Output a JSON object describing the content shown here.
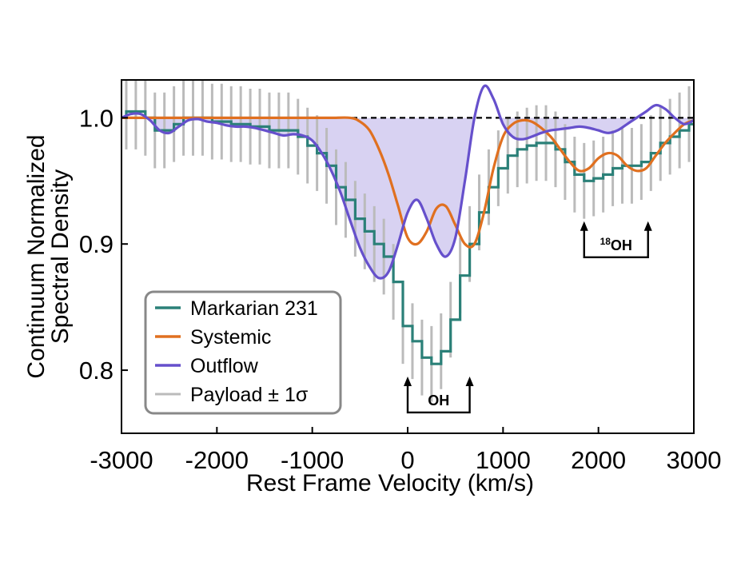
{
  "chart_data": {
    "type": "line",
    "title": "",
    "xlabel": "Rest Frame Velocity (km/s)",
    "ylabel_lines": [
      "Continuum Normalized",
      "Spectral Density"
    ],
    "xlim": [
      -3000,
      3000
    ],
    "ylim": [
      0.75,
      1.03
    ],
    "xticks": [
      -3000,
      -2000,
      -1000,
      0,
      1000,
      2000,
      3000
    ],
    "xtick_labels": [
      "-3000",
      "-2000",
      "-1000",
      "0",
      "1000",
      "2000",
      "3000"
    ],
    "yticks": [
      0.8,
      0.9,
      1.0
    ],
    "ytick_labels": [
      "0.8",
      "0.9",
      "1.0"
    ],
    "continuum_level": 1.0,
    "colors": {
      "markarian": "#2b8078",
      "systemic": "#e07020",
      "outflow": "#6650cc",
      "outflow_fill": "#d8d2f2",
      "payload": "#bbbbbb"
    },
    "legend": {
      "placement": "bottom-left",
      "entries": [
        {
          "label": "Markarian 231",
          "series": "markarian"
        },
        {
          "label": "Systemic",
          "series": "systemic"
        },
        {
          "label": "Outflow",
          "series": "outflow"
        },
        {
          "label": "Payload ± 1σ",
          "series": "payload"
        }
      ]
    },
    "annotations": [
      {
        "label": "OH",
        "sup": "",
        "x_left": 0,
        "x_right": 650,
        "arrow_y": 0.795
      },
      {
        "label": "OH",
        "sup": "18",
        "x_left": 1850,
        "x_right": 2520,
        "arrow_y": 0.918
      }
    ],
    "series": [
      {
        "name": "Markarian 231",
        "key": "markarian",
        "style": "step",
        "x": [
          -3000,
          -2900,
          -2800,
          -2700,
          -2600,
          -2500,
          -2400,
          -2300,
          -2200,
          -2100,
          -2000,
          -1900,
          -1800,
          -1700,
          -1600,
          -1500,
          -1400,
          -1300,
          -1200,
          -1100,
          -1000,
          -900,
          -800,
          -700,
          -600,
          -500,
          -400,
          -300,
          -200,
          -100,
          0,
          100,
          200,
          300,
          400,
          500,
          600,
          700,
          800,
          900,
          1000,
          1100,
          1200,
          1300,
          1400,
          1500,
          1600,
          1700,
          1800,
          1900,
          2000,
          2100,
          2200,
          2300,
          2400,
          2500,
          2600,
          2700,
          2800,
          2900,
          3000
        ],
        "y": [
          1.0,
          1.005,
          1.005,
          1.0,
          0.99,
          0.99,
          0.995,
          1.0,
          1.0,
          1.0,
          0.997,
          0.997,
          0.995,
          0.995,
          0.993,
          0.993,
          0.99,
          0.99,
          0.99,
          0.985,
          0.978,
          0.972,
          0.962,
          0.945,
          0.935,
          0.92,
          0.91,
          0.9,
          0.89,
          0.87,
          0.835,
          0.823,
          0.81,
          0.805,
          0.815,
          0.84,
          0.875,
          0.9,
          0.925,
          0.945,
          0.96,
          0.97,
          0.975,
          0.978,
          0.98,
          0.98,
          0.975,
          0.965,
          0.955,
          0.95,
          0.952,
          0.955,
          0.96,
          0.962,
          0.962,
          0.965,
          0.972,
          0.98,
          0.985,
          0.99,
          0.995
        ]
      },
      {
        "name": "Systemic",
        "key": "systemic",
        "style": "smooth",
        "x": [
          -3000,
          -2800,
          -2600,
          -2400,
          -2200,
          -2000,
          -1800,
          -1600,
          -1400,
          -1200,
          -1000,
          -800,
          -600,
          -500,
          -400,
          -300,
          -200,
          -100,
          0,
          100,
          200,
          300,
          400,
          500,
          600,
          700,
          800,
          900,
          1000,
          1100,
          1200,
          1300,
          1400,
          1500,
          1600,
          1700,
          1800,
          1900,
          2000,
          2100,
          2200,
          2300,
          2400,
          2500,
          2600,
          2700,
          2800,
          2900,
          3000
        ],
        "y": [
          1.0,
          1.0,
          1.0,
          1.0,
          1.0,
          1.0,
          1.0,
          1.0,
          1.0,
          1.0,
          1.0,
          1.0,
          1.0,
          0.997,
          0.99,
          0.975,
          0.955,
          0.93,
          0.905,
          0.9,
          0.91,
          0.928,
          0.93,
          0.915,
          0.9,
          0.9,
          0.925,
          0.96,
          0.985,
          0.995,
          0.998,
          0.997,
          0.992,
          0.985,
          0.975,
          0.965,
          0.958,
          0.96,
          0.968,
          0.972,
          0.97,
          0.962,
          0.958,
          0.96,
          0.97,
          0.98,
          0.988,
          0.995,
          0.998
        ]
      },
      {
        "name": "Outflow",
        "key": "outflow",
        "style": "smooth",
        "x": [
          -3000,
          -2900,
          -2800,
          -2700,
          -2600,
          -2500,
          -2400,
          -2300,
          -2200,
          -2100,
          -2000,
          -1900,
          -1800,
          -1700,
          -1600,
          -1500,
          -1400,
          -1300,
          -1200,
          -1100,
          -1000,
          -900,
          -800,
          -700,
          -600,
          -500,
          -400,
          -300,
          -200,
          -100,
          0,
          100,
          200,
          300,
          400,
          500,
          600,
          700,
          800,
          900,
          1000,
          1100,
          1200,
          1300,
          1400,
          1500,
          1600,
          1700,
          1800,
          1900,
          2000,
          2100,
          2200,
          2300,
          2400,
          2500,
          2600,
          2700,
          2800,
          2900,
          3000
        ],
        "y": [
          1.0,
          1.003,
          1.003,
          0.998,
          0.99,
          0.988,
          0.993,
          0.998,
          0.999,
          0.997,
          0.996,
          0.994,
          0.993,
          0.993,
          0.992,
          0.99,
          0.988,
          0.986,
          0.987,
          0.986,
          0.982,
          0.972,
          0.958,
          0.94,
          0.918,
          0.897,
          0.882,
          0.873,
          0.878,
          0.9,
          0.925,
          0.935,
          0.92,
          0.9,
          0.89,
          0.905,
          0.95,
          1.0,
          1.025,
          1.015,
          0.995,
          0.985,
          0.983,
          0.985,
          0.988,
          0.99,
          0.991,
          0.992,
          0.993,
          0.992,
          0.99,
          0.988,
          0.99,
          0.995,
          1.0,
          1.005,
          1.01,
          1.007,
          1.0,
          0.995,
          0.998
        ]
      },
      {
        "name": "Payload ± 1σ",
        "key": "payload",
        "style": "errorbars",
        "x": [
          -2950,
          -2850,
          -2750,
          -2650,
          -2550,
          -2450,
          -2350,
          -2250,
          -2150,
          -2050,
          -1950,
          -1850,
          -1750,
          -1650,
          -1550,
          -1450,
          -1350,
          -1250,
          -1150,
          -1050,
          -950,
          -850,
          -750,
          -650,
          -550,
          -450,
          -350,
          -250,
          -150,
          -50,
          50,
          150,
          250,
          350,
          450,
          550,
          650,
          750,
          850,
          950,
          1050,
          1150,
          1250,
          1350,
          1450,
          1550,
          1650,
          1750,
          1850,
          1950,
          2050,
          2150,
          2250,
          2350,
          2450,
          2550,
          2650,
          2750,
          2850,
          2950
        ],
        "y": [
          1.005,
          1.005,
          1.0,
          0.99,
          0.99,
          0.995,
          1.0,
          1.0,
          1.0,
          0.997,
          0.997,
          0.995,
          0.995,
          0.993,
          0.993,
          0.99,
          0.99,
          0.99,
          0.985,
          0.978,
          0.972,
          0.962,
          0.945,
          0.935,
          0.92,
          0.91,
          0.9,
          0.89,
          0.87,
          0.835,
          0.823,
          0.81,
          0.805,
          0.815,
          0.84,
          0.875,
          0.9,
          0.925,
          0.945,
          0.96,
          0.97,
          0.975,
          0.978,
          0.98,
          0.98,
          0.975,
          0.965,
          0.955,
          0.95,
          0.952,
          0.955,
          0.96,
          0.962,
          0.962,
          0.965,
          0.972,
          0.98,
          0.985,
          0.99,
          0.995
        ],
        "err": 0.03
      }
    ]
  }
}
